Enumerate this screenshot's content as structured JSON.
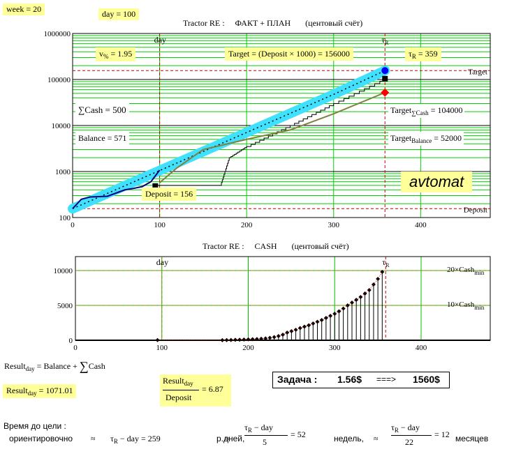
{
  "header": {
    "week": "week = 20",
    "day": "day = 100",
    "chart1_title": "Tractor RE :     ФАКТ + ПЛАН       (центовый счёт)",
    "chart2_title": "Tractor RE :     CASH       (центовый счёт)"
  },
  "chart1_labels": {
    "v_prefix": "v",
    "v_sub": "%",
    "v_value": " = 1.95",
    "target_formula": "Target = (Deposit × 1000) = 156000",
    "tau_prefix": "τ",
    "tau_sub": "R",
    "tau_value": " = 359",
    "sum_cash": "∑Cash = 500",
    "balance": "Balance = 571",
    "target_cash_prefix": "Target",
    "target_cash_sub": "∑Cash",
    "target_cash_value": " = 104000",
    "target_balance_prefix": "Target",
    "target_balance_sub": "Balance",
    "target_balance_value": " = 52000",
    "deposit": "Deposit = 156",
    "mode": "avtomat",
    "line_target": "Target",
    "line_deposit": "Deposit",
    "marker_day": "day",
    "marker_tau": "τ",
    "marker_tau_sub": "R"
  },
  "chart2_labels": {
    "cash20_prefix": "20×Cash",
    "cash20_sub": "min",
    "cash10_prefix": "10×Cash",
    "cash10_sub": "min",
    "marker_day": "day",
    "marker_tau": "τ",
    "marker_tau_sub": "R"
  },
  "formulas": {
    "result_def_prefix": "Result",
    "result_def_sub": "day",
    "result_def_rest": " = Balance + ",
    "result_def_sum": "∑",
    "result_def_cash": "Cash",
    "result_value_prefix": "Result",
    "result_value_sub": "day",
    "result_value_rest": " = 1071.01",
    "ratio_num_prefix": "Result",
    "ratio_num_sub": "day",
    "ratio_den": "Deposit",
    "ratio_value": "= 6.87",
    "task_label": "Задача :",
    "task_value1": "1.56$",
    "task_arrow": "===>",
    "task_value2": "1560$"
  },
  "time_to_goal": {
    "line1": "Время до цели :",
    "line2": "ориентировочно",
    "approx": "≈",
    "t1_prefix": "τ",
    "t1_sub": "R",
    "t1_rest": " − day = 259",
    "t1_unit": "р.дней,",
    "t2_num_prefix": "τ",
    "t2_num_sub": "R",
    "t2_num_rest": " − day",
    "t2_den": "5",
    "t2_value": "= 52",
    "t2_unit": "недель,",
    "t3_num_prefix": "τ",
    "t3_num_sub": "R",
    "t3_num_rest": " − day",
    "t3_den": "22",
    "t3_value": "= 12",
    "t3_unit": "месяцев"
  },
  "chart_data": [
    {
      "type": "line",
      "title": "Tractor RE :     ФАКТ + ПЛАН       (центовый счёт)",
      "log_scale_y": true,
      "xlim": [
        0,
        480
      ],
      "ylim": [
        100,
        1000000
      ],
      "x_ticks": [
        0,
        100,
        200,
        300,
        400
      ],
      "y_ticks": [
        100,
        1000,
        10000,
        100000,
        1000000
      ],
      "grid": true,
      "vlines": {
        "day": 100,
        "tauR": 359
      },
      "hlines": {
        "Target": 156000,
        "Deposit": 156
      },
      "series": [
        {
          "role": "plan",
          "color": "#00c0ff",
          "x": [
            0,
            50,
            100,
            150,
            200,
            250,
            300,
            359
          ],
          "y": [
            156,
            405,
            1050,
            2720,
            7060,
            18300,
            47400,
            156000
          ]
        },
        {
          "role": "fact",
          "color": "#000080",
          "x": [
            0,
            10,
            20,
            40,
            60,
            70,
            80,
            90,
            100
          ],
          "y": [
            156,
            250,
            280,
            290,
            400,
            430,
            470,
            600,
            1071
          ]
        },
        {
          "role": "balance",
          "color": "#808040",
          "x": [
            100,
            120,
            150,
            200,
            250,
            300,
            359
          ],
          "y": [
            571,
            1200,
            3000,
            5000,
            8000,
            18000,
            52000
          ]
        },
        {
          "role": "cash",
          "color": "#000000",
          "x": [
            95,
            170,
            180,
            200,
            250,
            300,
            359
          ],
          "y": [
            500,
            500,
            2000,
            3500,
            10000,
            30000,
            104000
          ]
        }
      ],
      "end_markers": [
        {
          "x": 359,
          "y": 156000,
          "color": "#0000ff",
          "shape": "circle"
        },
        {
          "x": 359,
          "y": 104000,
          "color": "#000000",
          "shape": "square"
        },
        {
          "x": 359,
          "y": 52000,
          "color": "#ff0000",
          "shape": "diamond"
        }
      ]
    },
    {
      "type": "bar",
      "title": "Tractor RE :     CASH       (центовый счёт)",
      "xlim": [
        0,
        480
      ],
      "ylim": [
        0,
        12000
      ],
      "x_ticks": [
        0,
        100,
        200,
        300,
        400
      ],
      "y_ticks": [
        0,
        5000,
        10000
      ],
      "grid": true,
      "hlines": {
        "20×Cash_min": 10000,
        "10×Cash_min": 5000
      },
      "vlines": {
        "day": 100,
        "tauR": 359
      },
      "x": [
        95,
        170,
        175,
        180,
        185,
        190,
        195,
        200,
        205,
        210,
        215,
        220,
        225,
        230,
        235,
        240,
        245,
        250,
        255,
        260,
        265,
        270,
        275,
        280,
        285,
        290,
        295,
        300,
        305,
        310,
        315,
        320,
        325,
        330,
        335,
        340,
        345,
        350,
        355
      ],
      "values": [
        30,
        10,
        20,
        40,
        60,
        80,
        100,
        120,
        150,
        180,
        210,
        260,
        350,
        450,
        600,
        800,
        1100,
        1300,
        1500,
        1750,
        1950,
        2150,
        2400,
        2650,
        2900,
        3200,
        3500,
        3800,
        4150,
        4550,
        5000,
        5400,
        5800,
        6200,
        6700,
        7200,
        8000,
        8800,
        9800
      ]
    }
  ]
}
